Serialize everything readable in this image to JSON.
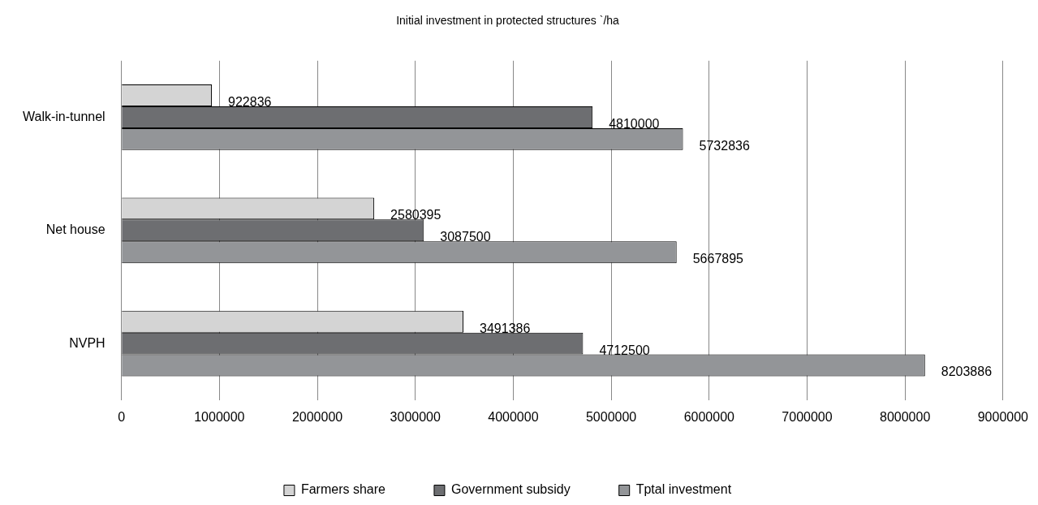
{
  "chart_data": {
    "type": "bar",
    "orientation": "horizontal",
    "title": "Initial investment in protected structures `/ha",
    "categories": [
      "Walk-in-tunnel",
      "Net house",
      "NVPH"
    ],
    "series": [
      {
        "name": "Farmers share",
        "color": "#d4d4d4",
        "values": [
          922836,
          2580395,
          3491386
        ]
      },
      {
        "name": "Government subsidy",
        "color": "#6d6e71",
        "values": [
          4810000,
          3087500,
          4712500
        ]
      },
      {
        "name": "Tptal investment",
        "color": "#939598",
        "values": [
          5732836,
          5667895,
          8203886
        ]
      }
    ],
    "xlim": [
      0,
      9000000
    ],
    "xticks": [
      0,
      1000000,
      2000000,
      3000000,
      4000000,
      5000000,
      6000000,
      7000000,
      8000000,
      9000000
    ],
    "grid": "x",
    "legend": "bottom",
    "data_labels": true
  }
}
